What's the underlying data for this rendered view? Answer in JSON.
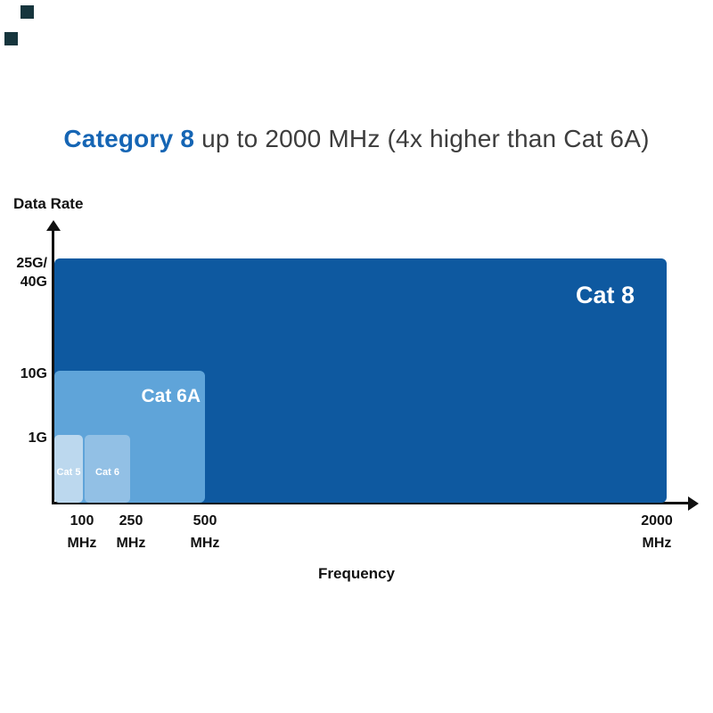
{
  "title": {
    "highlight": "Category 8",
    "rest": " up to 2000 MHz (4x higher than Cat 6A)"
  },
  "colors": {
    "title_highlight": "#1565b4",
    "title_text": "#3d3d3d",
    "cat8_fill": "#0e59a0",
    "cat6a_fill": "#5fa4d9",
    "cat6_fill": "#92c0e5",
    "cat5_fill": "#bcd8ee",
    "axis": "#111111",
    "area_label_text": "#ffffff"
  },
  "chart_data": {
    "type": "area",
    "title": "Category 8 up to 2000 MHz (4x higher than Cat 6A)",
    "xlabel": "Frequency",
    "ylabel": "Data Rate",
    "grid": false,
    "legend": false,
    "x_tick_labels": [
      "100\nMHz",
      "250\nMHz",
      "500\nMHz",
      "2000\nMHz"
    ],
    "y_tick_labels": [
      "25G/\n40G",
      "10G",
      "1G"
    ],
    "series": [
      {
        "name": "Cat 8",
        "max_frequency_mhz": 2000,
        "max_data_rate": "25G/40G"
      },
      {
        "name": "Cat 6A",
        "max_frequency_mhz": 500,
        "max_data_rate": "10G"
      },
      {
        "name": "Cat 6",
        "max_frequency_mhz": 250,
        "max_data_rate": "1G"
      },
      {
        "name": "Cat 5",
        "max_frequency_mhz": 100,
        "max_data_rate": "1G"
      }
    ]
  }
}
